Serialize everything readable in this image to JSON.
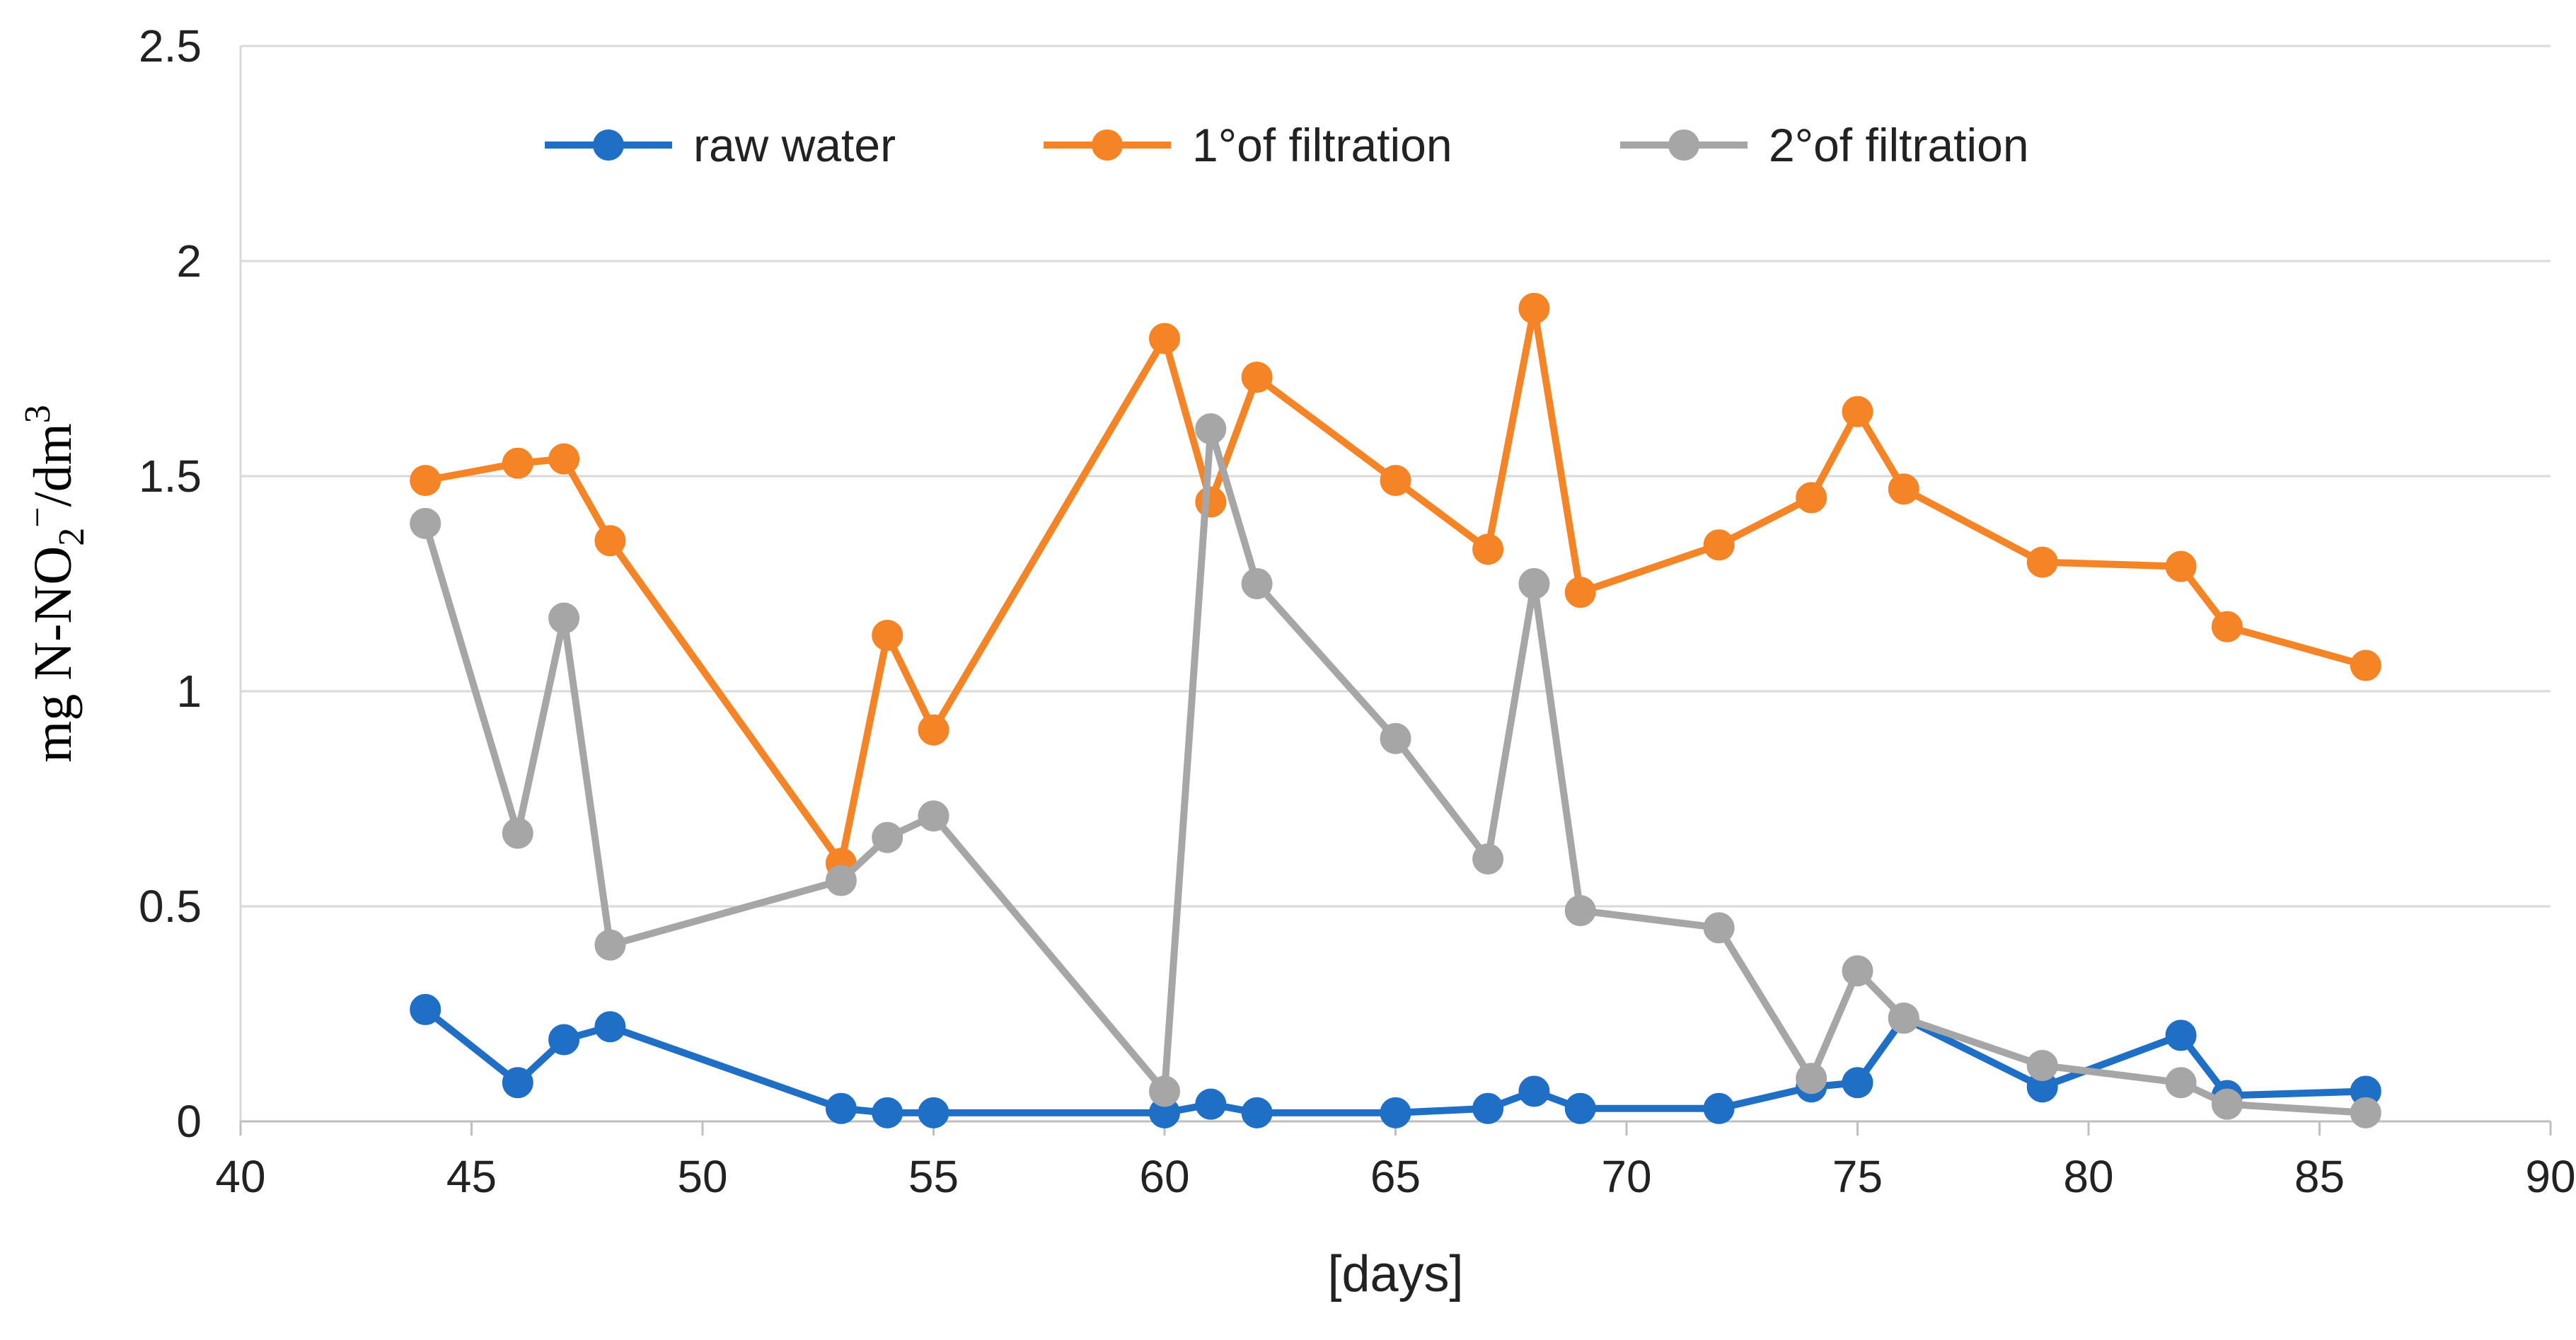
{
  "chart_data": {
    "type": "line",
    "title": "",
    "xlabel": "[days]",
    "ylabel": {
      "prefix": "mg  N-NO",
      "subscript": "2",
      "superscript1": "−",
      "middle": "/dm",
      "superscript2": "3"
    },
    "xlim": [
      40,
      90
    ],
    "ylim": [
      0,
      2.5
    ],
    "xticks": [
      40,
      45,
      50,
      55,
      60,
      65,
      70,
      75,
      80,
      85,
      90
    ],
    "yticks": [
      0,
      0.5,
      1,
      1.5,
      2,
      2.5
    ],
    "ytick_labels": [
      "0",
      "0.5",
      "1",
      "1.5",
      "2",
      "2.5"
    ],
    "grid": "horizontal",
    "legend_position": "top",
    "x": [
      44,
      46,
      47,
      48,
      53,
      54,
      55,
      60,
      61,
      62,
      65,
      67,
      68,
      69,
      72,
      74,
      75,
      76,
      79,
      82,
      83,
      86
    ],
    "series": [
      {
        "name": "raw water",
        "color": "#1f6fc6",
        "values": [
          0.26,
          0.09,
          0.19,
          0.22,
          0.03,
          0.02,
          0.02,
          0.02,
          0.04,
          0.02,
          0.02,
          0.03,
          0.07,
          0.03,
          0.03,
          0.08,
          0.09,
          0.24,
          0.08,
          0.2,
          0.06,
          0.07
        ]
      },
      {
        "name": "1°of filtration",
        "color": "#f58426",
        "values": [
          1.49,
          1.53,
          1.54,
          1.35,
          0.6,
          1.13,
          0.91,
          1.82,
          1.44,
          1.73,
          1.49,
          1.33,
          1.89,
          1.23,
          1.34,
          1.45,
          1.65,
          1.47,
          1.3,
          1.29,
          1.15,
          1.06
        ]
      },
      {
        "name": "2°of filtration",
        "color": "#a6a6a6",
        "values": [
          1.39,
          0.67,
          1.17,
          0.41,
          0.56,
          0.66,
          0.71,
          0.07,
          1.61,
          1.25,
          0.89,
          0.61,
          1.25,
          0.49,
          0.45,
          0.1,
          0.35,
          0.24,
          0.13,
          0.09,
          0.04,
          0.02
        ]
      }
    ]
  }
}
